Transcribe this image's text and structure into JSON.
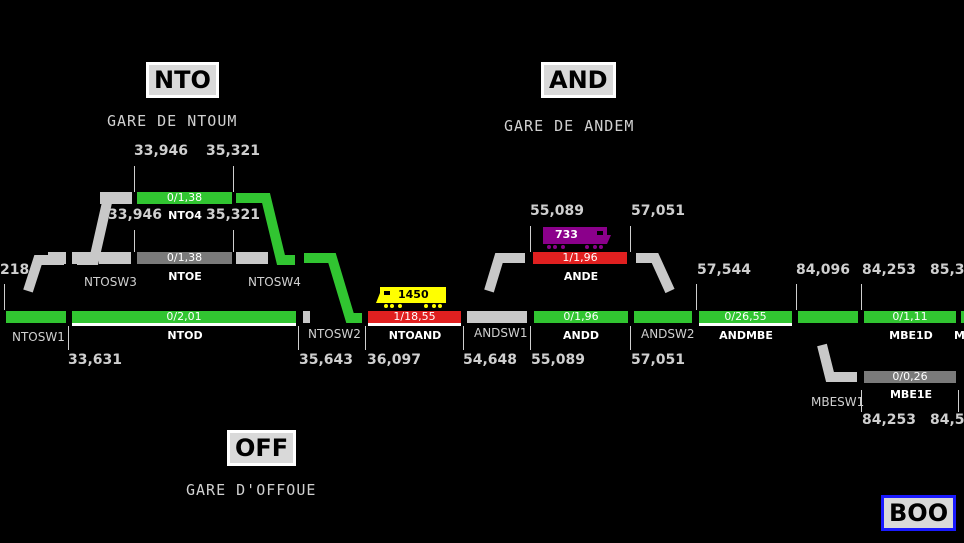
{
  "stations": {
    "nto": {
      "code": "NTO",
      "name": "GARE DE NTOUM"
    },
    "and": {
      "code": "AND",
      "name": "GARE DE ANDEM"
    },
    "off": {
      "code": "OFF",
      "name": "GARE D'OFFOUE"
    },
    "boo": {
      "code": "BOO"
    }
  },
  "kms": {
    "k218": "218",
    "k33946_top": "33,946",
    "k35321_top": "35,321",
    "k33946_mid": "33,946",
    "k35321_mid": "35,321",
    "k33631": "33,631",
    "k35643": "35,643",
    "k36097": "36,097",
    "k54648": "54,648",
    "k55089_top": "55,089",
    "k57051_top": "57,051",
    "k55089_bot": "55,089",
    "k57051_bot": "57,051",
    "k57544": "57,544",
    "k84096": "84,096",
    "k84253_top": "84,253",
    "k85_top": "85,3",
    "k84253_bot": "84,253",
    "k84_bot": "84,5"
  },
  "tracks": {
    "nto4": {
      "value": "0/1,38",
      "name": "NTO4"
    },
    "ntoe": {
      "value": "0/1,38",
      "name": "NTOE"
    },
    "ntod": {
      "value": "0/2,01",
      "name": "NTOD"
    },
    "ntoand": {
      "value": "1/18,55",
      "name": "NTOAND"
    },
    "ande": {
      "value": "1/1,96",
      "name": "ANDE"
    },
    "andd": {
      "value": "0/1,96",
      "name": "ANDD"
    },
    "andmbe": {
      "value": "0/26,55",
      "name": "ANDMBE"
    },
    "mbe1d": {
      "value": "0/1,11",
      "name": "MBE1D"
    },
    "mbe1e": {
      "value": "0/0,26",
      "name": "MBE1E"
    },
    "m_trunc": {
      "name": "M"
    }
  },
  "switches": {
    "ntosw1": "NTOSW1",
    "ntosw2": "NTOSW2",
    "ntosw3": "NTOSW3",
    "ntosw4": "NTOSW4",
    "andsw1": "ANDSW1",
    "andsw2": "ANDSW2",
    "mbesw1": "MBESW1"
  },
  "trains": {
    "yellow": {
      "number": "1450",
      "color": "#ffff00"
    },
    "purple": {
      "number": "733",
      "color": "#8b008b"
    }
  },
  "colors": {
    "occupied": "#e02020",
    "free": "#31c531",
    "inactive": "#c8c8c8",
    "reserved": "#7a7a7a"
  }
}
